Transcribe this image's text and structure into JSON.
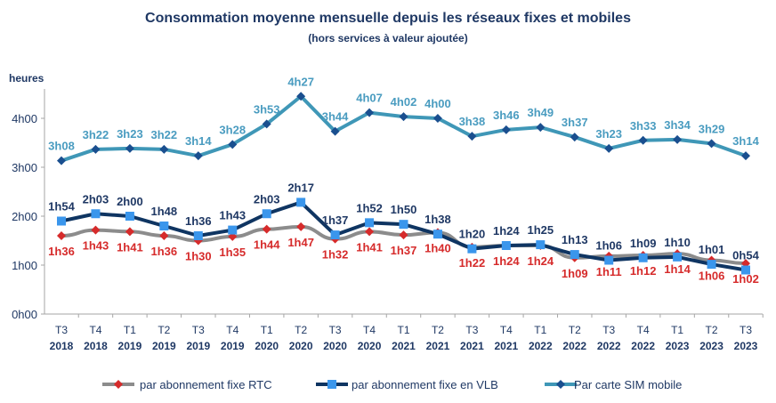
{
  "chart_data": {
    "type": "line",
    "title": "Consommation moyenne mensuelle depuis les réseaux fixes et mobiles",
    "subtitle": "(hors services à valeur ajoutée)",
    "ylabel": "heures",
    "ylim": [
      "0h00",
      "4h00"
    ],
    "yticks": [
      "0h00",
      "1h00",
      "2h00",
      "3h00",
      "4h00"
    ],
    "grid": false,
    "legend_position": "bottom",
    "categories": [
      [
        "T3",
        "2018"
      ],
      [
        "T4",
        "2018"
      ],
      [
        "T1",
        "2019"
      ],
      [
        "T2",
        "2019"
      ],
      [
        "T3",
        "2019"
      ],
      [
        "T4",
        "2019"
      ],
      [
        "T1",
        "2020"
      ],
      [
        "T2",
        "2020"
      ],
      [
        "T3",
        "2020"
      ],
      [
        "T4",
        "2020"
      ],
      [
        "T1",
        "2021"
      ],
      [
        "T2",
        "2021"
      ],
      [
        "T3",
        "2021"
      ],
      [
        "T4",
        "2021"
      ],
      [
        "T1",
        "2022"
      ],
      [
        "T2",
        "2022"
      ],
      [
        "T3",
        "2022"
      ],
      [
        "T4",
        "2022"
      ],
      [
        "T1",
        "2023"
      ],
      [
        "T2",
        "2023"
      ],
      [
        "T3",
        "2023"
      ]
    ],
    "series": [
      {
        "name": "par abonnement fixe RTC",
        "line_color": "#8c8c8c",
        "marker_color": "#d62b2b",
        "label_color": "#d62b2b",
        "marker": "diamond",
        "label_pos": "below",
        "values": [
          "1h36",
          "1h43",
          "1h41",
          "1h36",
          "1h30",
          "1h35",
          "1h44",
          "1h47",
          "1h32",
          "1h41",
          "1h37",
          "1h40",
          "1h22",
          "1h24",
          "1h24",
          "1h09",
          "1h11",
          "1h12",
          "1h14",
          "1h06",
          "1h02"
        ]
      },
      {
        "name": "par abonnement fixe en VLB",
        "line_color": "#0f3562",
        "marker_color": "#3a96ec",
        "label_color": "#1f3864",
        "marker": "square",
        "label_pos": "above",
        "values": [
          "1h54",
          "2h03",
          "2h00",
          "1h48",
          "1h36",
          "1h43",
          "2h03",
          "2h17",
          "1h37",
          "1h52",
          "1h50",
          "1h38",
          "1h20",
          "1h24",
          "1h25",
          "1h13",
          "1h06",
          "1h09",
          "1h10",
          "1h01",
          "0h54"
        ]
      },
      {
        "name": "Par carte SIM mobile",
        "line_color": "#3f97b7",
        "marker_color": "#1a4f8f",
        "label_color": "#4a9cc0",
        "marker": "diamond",
        "label_pos": "above",
        "values": [
          "3h08",
          "3h22",
          "3h23",
          "3h22",
          "3h14",
          "3h28",
          "3h53",
          "4h27",
          "3h44",
          "4h07",
          "4h02",
          "4h00",
          "3h38",
          "3h46",
          "3h49",
          "3h37",
          "3h23",
          "3h33",
          "3h34",
          "3h29",
          "3h14"
        ]
      }
    ]
  }
}
